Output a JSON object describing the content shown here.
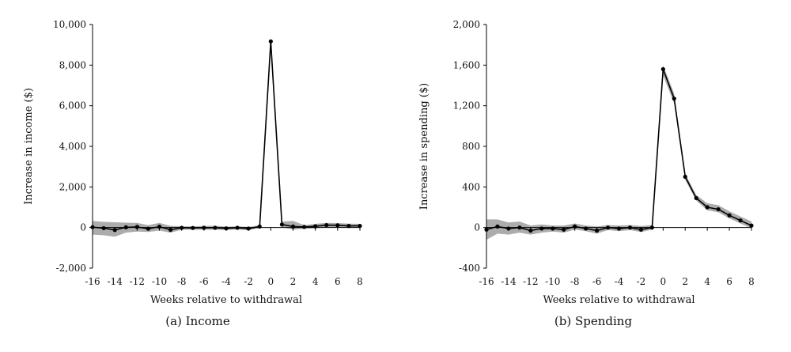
{
  "panels": [
    {
      "caption": "(a) Income"
    },
    {
      "caption": "(b) Spending"
    }
  ],
  "chart_data": [
    {
      "type": "line",
      "caption": "(a) Income",
      "xlabel": "Weeks relative to withdrawal",
      "ylabel": "Increase in income ($)",
      "xlim": [
        -16,
        8
      ],
      "ylim": [
        -2000,
        10000
      ],
      "xticks": [
        -16,
        -14,
        -12,
        -10,
        -8,
        -6,
        -4,
        -2,
        0,
        2,
        4,
        6,
        8
      ],
      "yticks": [
        -2000,
        0,
        2000,
        4000,
        6000,
        8000,
        10000
      ],
      "ytick_labels": [
        "-2,000",
        "0",
        "2,000",
        "4,000",
        "6,000",
        "8,000",
        "10,000"
      ],
      "line_color": "#000000",
      "band_color": "#9e9e9e",
      "grid": false,
      "series": [
        {
          "x": [
            -16,
            -15,
            -14,
            -13,
            -12,
            -11,
            -10,
            -9,
            -8,
            -7,
            -6,
            -5,
            -4,
            -3,
            -2,
            -1,
            0,
            1,
            2,
            3,
            4,
            5,
            6,
            7,
            8
          ],
          "y": [
            20,
            -30,
            -120,
            10,
            30,
            -60,
            40,
            -110,
            -10,
            -20,
            -10,
            -10,
            -40,
            -10,
            -50,
            50,
            9170,
            150,
            50,
            30,
            60,
            120,
            110,
            80,
            80
          ],
          "lower": [
            -350,
            -380,
            -450,
            -250,
            -200,
            -220,
            -150,
            -250,
            -110,
            -110,
            -110,
            -110,
            -120,
            -100,
            -130,
            -20,
            9100,
            20,
            -100,
            -60,
            -40,
            20,
            10,
            -10,
            -10
          ],
          "upper": [
            330,
            280,
            260,
            240,
            230,
            120,
            230,
            80,
            60,
            60,
            80,
            90,
            40,
            60,
            30,
            110,
            9230,
            290,
            330,
            120,
            180,
            230,
            220,
            190,
            180
          ]
        }
      ]
    },
    {
      "type": "line",
      "caption": "(b) Spending",
      "xlabel": "Weeks relative to withdrawal",
      "ylabel": "Increase in spending ($)",
      "xlim": [
        -16,
        8
      ],
      "ylim": [
        -400,
        2000
      ],
      "xticks": [
        -16,
        -14,
        -12,
        -10,
        -8,
        -6,
        -4,
        -2,
        0,
        2,
        4,
        6,
        8
      ],
      "yticks": [
        -400,
        0,
        400,
        800,
        1200,
        1600,
        2000
      ],
      "ytick_labels": [
        "-400",
        "0",
        "400",
        "800",
        "1,200",
        "1,600",
        "2,000"
      ],
      "line_color": "#000000",
      "band_color": "#9e9e9e",
      "grid": false,
      "series": [
        {
          "x": [
            -16,
            -15,
            -14,
            -13,
            -12,
            -11,
            -10,
            -9,
            -8,
            -7,
            -6,
            -5,
            -4,
            -3,
            -2,
            -1,
            0,
            1,
            2,
            3,
            4,
            5,
            6,
            7,
            8
          ],
          "y": [
            -20,
            10,
            -10,
            0,
            -30,
            -10,
            -10,
            -20,
            10,
            -10,
            -30,
            0,
            -10,
            0,
            -20,
            0,
            1560,
            1270,
            500,
            290,
            200,
            180,
            120,
            70,
            20
          ],
          "lower": [
            -120,
            -60,
            -70,
            -50,
            -70,
            -50,
            -40,
            -50,
            -20,
            -35,
            -60,
            -25,
            -35,
            -25,
            -45,
            -20,
            1500,
            1220,
            470,
            265,
            170,
            150,
            90,
            40,
            -10
          ],
          "upper": [
            80,
            80,
            50,
            60,
            20,
            30,
            20,
            20,
            40,
            20,
            10,
            25,
            20,
            25,
            15,
            25,
            1600,
            1320,
            530,
            320,
            240,
            220,
            160,
            110,
            60
          ]
        }
      ]
    }
  ]
}
